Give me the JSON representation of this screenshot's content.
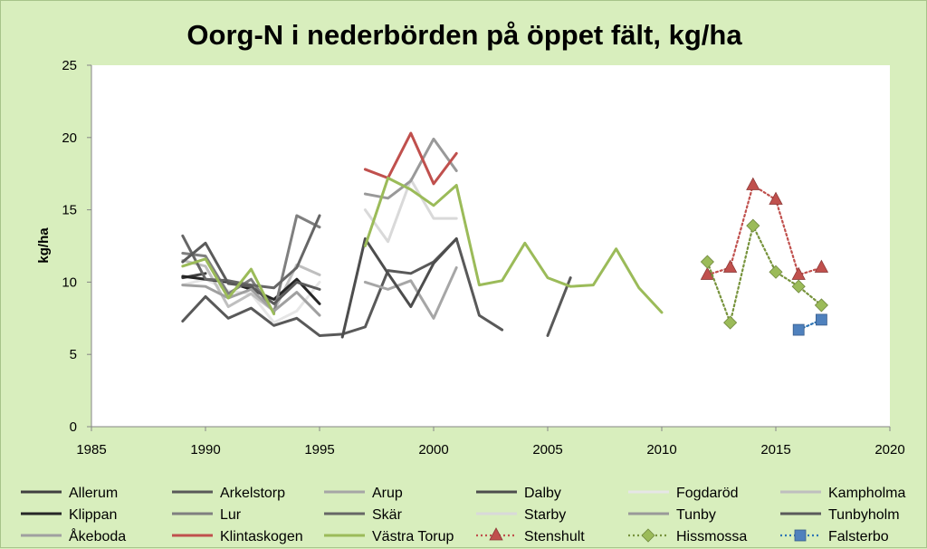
{
  "chart_data": {
    "type": "line",
    "title": "Oorg-N i nederbörden på öppet fält, kg/ha",
    "xlabel": "",
    "ylabel": "kg/ha",
    "xlim": [
      1985,
      2020
    ],
    "ylim": [
      0,
      25
    ],
    "xticks": [
      1985,
      1990,
      1995,
      2000,
      2005,
      2010,
      2015,
      2020
    ],
    "yticks": [
      0,
      5,
      10,
      15,
      20,
      25
    ],
    "grid": false,
    "legend_position": "bottom",
    "series": [
      {
        "name": "Allerum",
        "color": "#404040",
        "style": "solid",
        "marker": "none",
        "points": [
          [
            1989,
            10.3
          ],
          [
            1990,
            10.6
          ]
        ]
      },
      {
        "name": "Arkelstorp",
        "color": "#595959",
        "style": "solid",
        "marker": "none",
        "points": [
          [
            1989,
            7.3
          ],
          [
            1990,
            9.0
          ],
          [
            1991,
            7.5
          ],
          [
            1992,
            8.2
          ],
          [
            1993,
            7.0
          ],
          [
            1994,
            7.5
          ],
          [
            1995,
            6.3
          ],
          [
            1996,
            6.4
          ],
          [
            1997,
            6.9
          ],
          [
            1998,
            10.8
          ],
          [
            1999,
            10.6
          ],
          [
            2000,
            11.4
          ],
          [
            2001,
            13.0
          ],
          [
            2002,
            7.7
          ],
          [
            2003,
            6.7
          ],
          [
            2005,
            6.3
          ],
          [
            2006,
            10.3
          ]
        ]
      },
      {
        "name": "Arup",
        "color": "#a6a6a6",
        "style": "solid",
        "marker": "none",
        "points": [
          [
            1997,
            10.0
          ],
          [
            1998,
            9.5
          ],
          [
            1999,
            10.1
          ],
          [
            2000,
            7.5
          ],
          [
            2001,
            11.0
          ]
        ]
      },
      {
        "name": "Dalby",
        "color": "#4d4d4d",
        "style": "solid",
        "marker": "none",
        "points": [
          [
            1996,
            6.2
          ],
          [
            1997,
            13.0
          ],
          [
            1998,
            10.6
          ],
          [
            1999,
            8.3
          ],
          [
            2000,
            11.3
          ],
          [
            2001,
            13.0
          ]
        ]
      },
      {
        "name": "Fogdaröd",
        "color": "#e6e6e6",
        "style": "solid",
        "marker": "none",
        "points": [
          [
            1989,
            9.8
          ],
          [
            1990,
            10.2
          ],
          [
            1991,
            9.4
          ],
          [
            1992,
            9.2
          ],
          [
            1993,
            7.2
          ],
          [
            1994,
            8.0
          ],
          [
            1995,
            10.0
          ]
        ]
      },
      {
        "name": "Kampholma",
        "color": "#bfbfbf",
        "style": "solid",
        "marker": "none",
        "points": [
          [
            1989,
            11.5
          ],
          [
            1990,
            11.1
          ],
          [
            1991,
            8.3
          ],
          [
            1992,
            9.2
          ],
          [
            1993,
            8.0
          ],
          [
            1994,
            11.2
          ],
          [
            1995,
            10.5
          ]
        ]
      },
      {
        "name": "Klippan",
        "color": "#262626",
        "style": "solid",
        "marker": "none",
        "points": [
          [
            1989,
            10.4
          ],
          [
            1990,
            10.2
          ],
          [
            1991,
            10.0
          ],
          [
            1992,
            9.5
          ],
          [
            1993,
            8.8
          ],
          [
            1994,
            10.2
          ],
          [
            1995,
            8.5
          ]
        ]
      },
      {
        "name": "Lur",
        "color": "#7f7f7f",
        "style": "solid",
        "marker": "none",
        "points": [
          [
            1989,
            12.0
          ],
          [
            1990,
            11.8
          ],
          [
            1991,
            9.2
          ],
          [
            1992,
            10.2
          ],
          [
            1993,
            7.9
          ],
          [
            1994,
            14.6
          ],
          [
            1995,
            13.8
          ]
        ]
      },
      {
        "name": "Skär",
        "color": "#666666",
        "style": "solid",
        "marker": "none",
        "points": [
          [
            1989,
            13.2
          ],
          [
            1990,
            10.2
          ],
          [
            1991,
            10.1
          ],
          [
            1992,
            9.8
          ],
          [
            1993,
            9.6
          ],
          [
            1994,
            11.0
          ],
          [
            1995,
            14.6
          ]
        ]
      },
      {
        "name": "Starby",
        "color": "#d9d9d9",
        "style": "solid",
        "marker": "none",
        "points": [
          [
            1997,
            15.0
          ],
          [
            1998,
            12.8
          ],
          [
            1999,
            17.1
          ],
          [
            2000,
            14.4
          ],
          [
            2001,
            14.4
          ]
        ]
      },
      {
        "name": "Tunby",
        "color": "#999999",
        "style": "solid",
        "marker": "none",
        "points": [
          [
            1997,
            16.1
          ],
          [
            1998,
            15.8
          ],
          [
            1999,
            17.0
          ],
          [
            2000,
            19.9
          ],
          [
            2001,
            17.7
          ]
        ]
      },
      {
        "name": "Tunbyholm",
        "color": "#5a5a5a",
        "style": "solid",
        "marker": "none",
        "points": [
          [
            1989,
            11.4
          ],
          [
            1990,
            12.7
          ],
          [
            1991,
            9.9
          ],
          [
            1992,
            9.7
          ],
          [
            1993,
            8.5
          ],
          [
            1994,
            10.0
          ],
          [
            1995,
            9.5
          ]
        ]
      },
      {
        "name": "Åkeboda",
        "color": "#a0a0a0",
        "style": "solid",
        "marker": "none",
        "points": [
          [
            1989,
            9.8
          ],
          [
            1990,
            9.7
          ],
          [
            1991,
            8.9
          ],
          [
            1992,
            9.5
          ],
          [
            1993,
            8.0
          ],
          [
            1994,
            9.3
          ],
          [
            1995,
            7.7
          ]
        ]
      },
      {
        "name": "Klintaskogen",
        "color": "#c0504d",
        "style": "solid",
        "marker": "none",
        "points": [
          [
            1997,
            17.8
          ],
          [
            1998,
            17.2
          ],
          [
            1999,
            20.3
          ],
          [
            2000,
            16.8
          ],
          [
            2001,
            18.9
          ]
        ]
      },
      {
        "name": "Västra Torup",
        "color": "#9bbb59",
        "style": "solid",
        "marker": "none",
        "points": [
          [
            1989,
            11.1
          ],
          [
            1990,
            11.6
          ],
          [
            1991,
            8.9
          ],
          [
            1992,
            10.9
          ],
          [
            1993,
            7.8
          ],
          [
            1997,
            12.5
          ],
          [
            1998,
            17.2
          ],
          [
            1999,
            16.4
          ],
          [
            2000,
            15.3
          ],
          [
            2001,
            16.7
          ],
          [
            2002,
            9.8
          ],
          [
            2003,
            10.1
          ],
          [
            2004,
            12.7
          ],
          [
            2005,
            10.3
          ],
          [
            2006,
            9.7
          ],
          [
            2007,
            9.8
          ],
          [
            2008,
            12.3
          ],
          [
            2009,
            9.6
          ],
          [
            2010,
            7.9
          ]
        ]
      },
      {
        "name": "Stenshult",
        "color": "#c0504d",
        "style": "dotted",
        "marker": "triangle",
        "points": [
          [
            2012,
            10.5
          ],
          [
            2013,
            11.0
          ],
          [
            2014,
            16.7
          ],
          [
            2015,
            15.7
          ],
          [
            2016,
            10.5
          ],
          [
            2017,
            11.0
          ]
        ]
      },
      {
        "name": "Hissmossa",
        "color": "#77933c",
        "markerColor": "#9bbb59",
        "style": "dotted",
        "marker": "diamond",
        "points": [
          [
            2012,
            11.4
          ],
          [
            2013,
            7.2
          ],
          [
            2014,
            13.9
          ],
          [
            2015,
            10.7
          ],
          [
            2016,
            9.7
          ],
          [
            2017,
            8.4
          ]
        ]
      },
      {
        "name": "Falsterbo",
        "color": "#2e75b6",
        "markerColor": "#4f81bd",
        "style": "dotted",
        "marker": "square",
        "points": [
          [
            2016,
            6.7
          ],
          [
            2017,
            7.4
          ]
        ]
      }
    ]
  }
}
